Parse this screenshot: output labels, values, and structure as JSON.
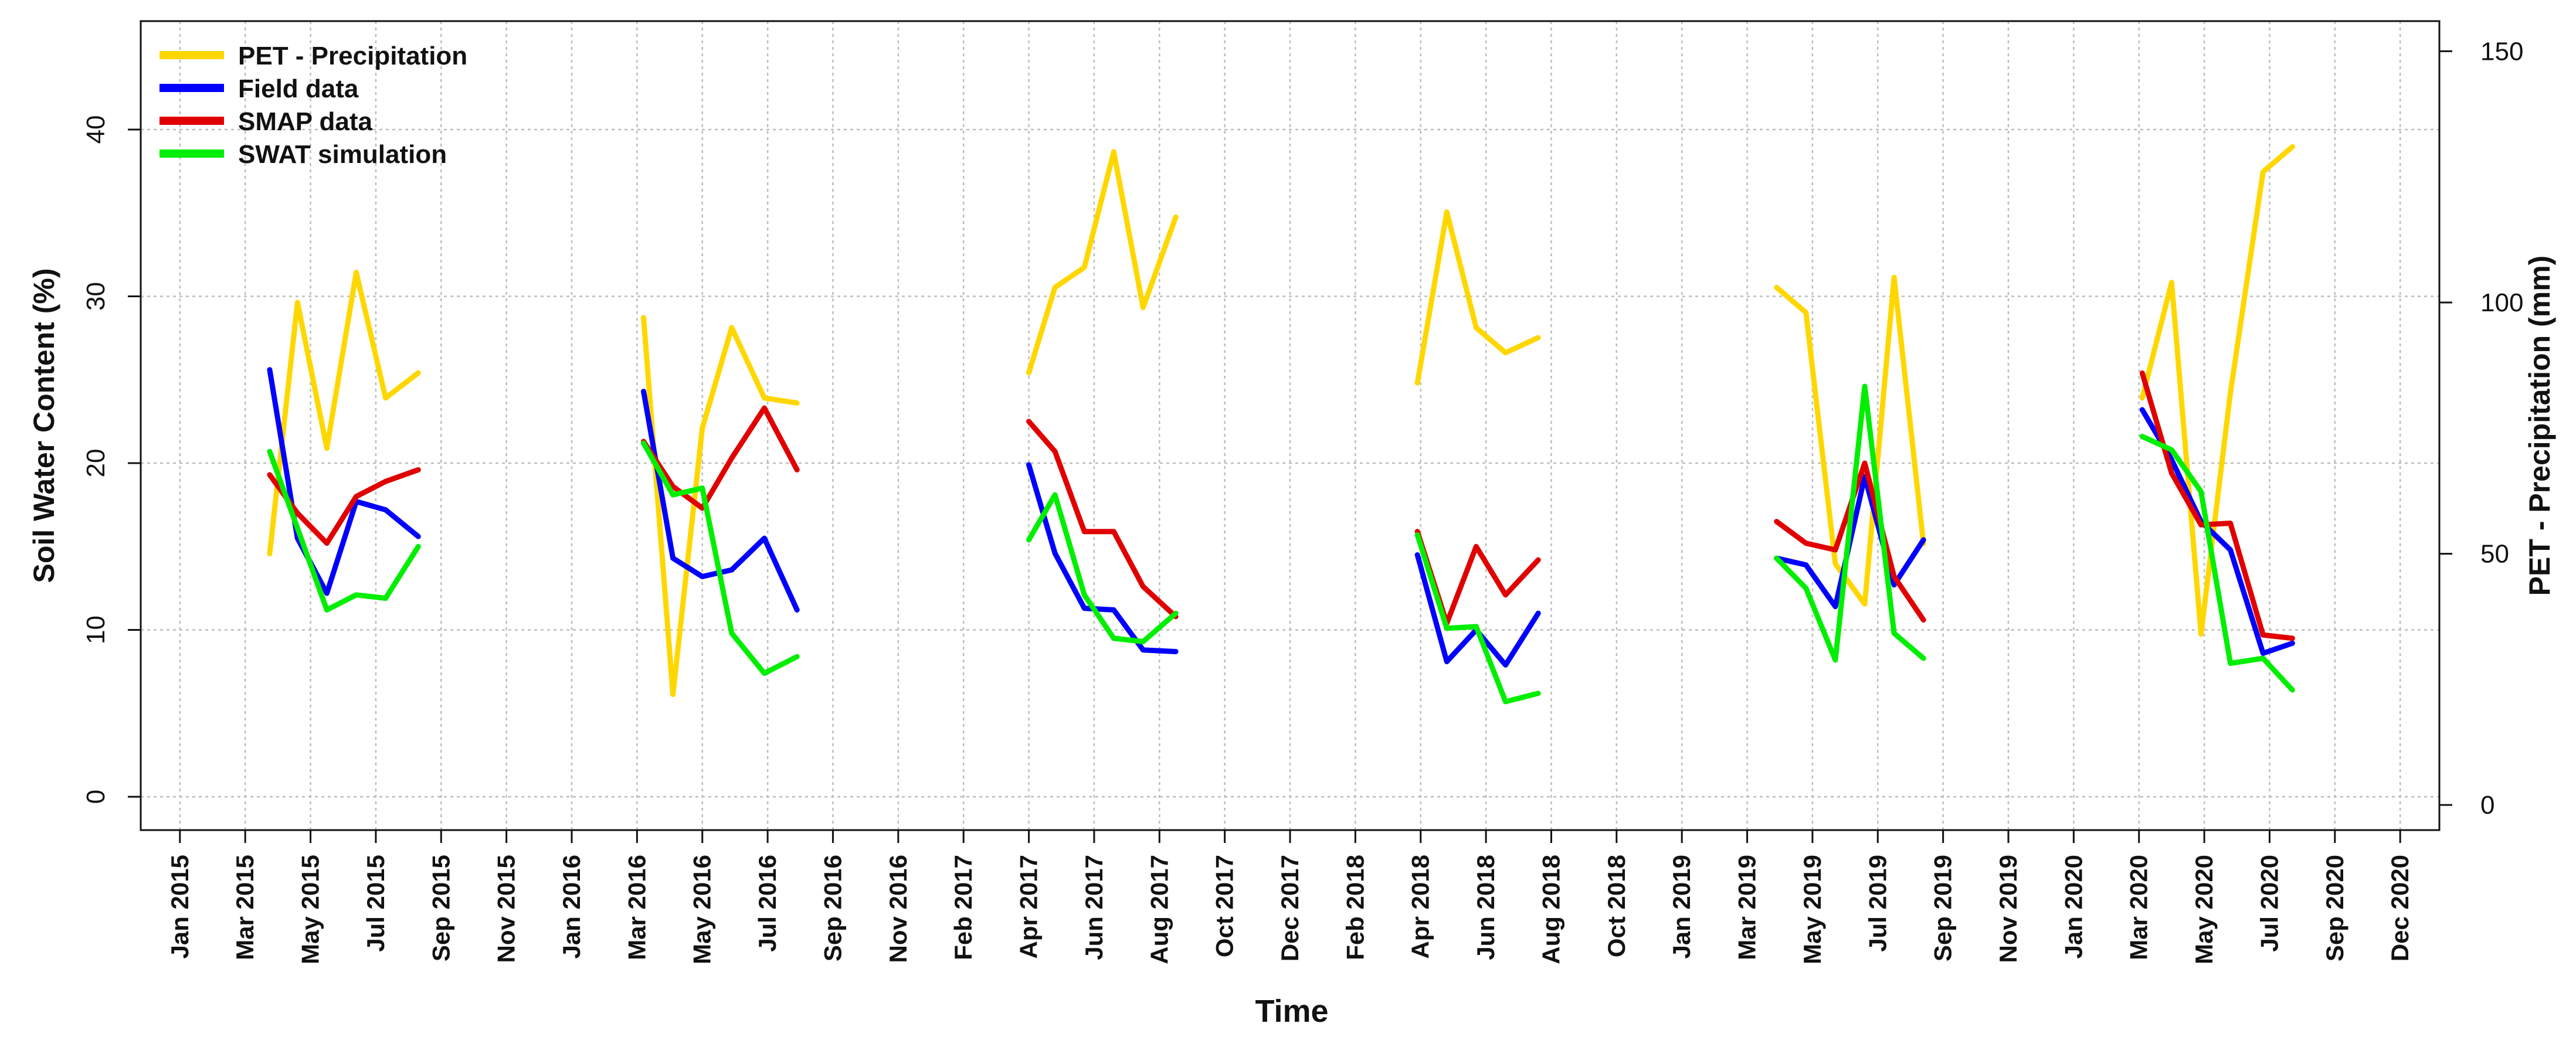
{
  "chart_data": {
    "type": "line",
    "title": "",
    "xlabel": "Time",
    "ylabel_left": "Soil Water Content (%)",
    "ylabel_right": "PET - Precipitation (mm)",
    "yleft_lim": [
      -2,
      46.5
    ],
    "yright_lim": [
      -5,
      156
    ],
    "yleft_ticks": [
      0,
      10,
      20,
      30,
      40
    ],
    "yright_ticks": [
      0,
      50,
      100,
      150
    ],
    "legend_position": "top-left",
    "grid": true,
    "x_ticks": [
      {
        "label": "Jan 2015",
        "t": 0
      },
      {
        "label": "Mar 2015",
        "t": 2
      },
      {
        "label": "May 2015",
        "t": 4
      },
      {
        "label": "Jul 2015",
        "t": 6
      },
      {
        "label": "Sep 2015",
        "t": 8
      },
      {
        "label": "Nov 2015",
        "t": 10
      },
      {
        "label": "Jan 2016",
        "t": 12
      },
      {
        "label": "Mar 2016",
        "t": 14
      },
      {
        "label": "May 2016",
        "t": 16
      },
      {
        "label": "Jul 2016",
        "t": 18
      },
      {
        "label": "Sep 2016",
        "t": 20
      },
      {
        "label": "Nov 2016",
        "t": 22
      },
      {
        "label": "Feb 2017",
        "t": 24
      },
      {
        "label": "Apr 2017",
        "t": 26
      },
      {
        "label": "Jun 2017",
        "t": 28
      },
      {
        "label": "Aug 2017",
        "t": 30
      },
      {
        "label": "Oct 2017",
        "t": 32
      },
      {
        "label": "Dec 2017",
        "t": 34
      },
      {
        "label": "Feb 2018",
        "t": 36
      },
      {
        "label": "Apr 2018",
        "t": 38
      },
      {
        "label": "Jun 2018",
        "t": 40
      },
      {
        "label": "Aug 2018",
        "t": 42
      },
      {
        "label": "Oct 2018",
        "t": 44
      },
      {
        "label": "Jan 2019",
        "t": 46
      },
      {
        "label": "Mar 2019",
        "t": 48
      },
      {
        "label": "May 2019",
        "t": 50
      },
      {
        "label": "Jul 2019",
        "t": 52
      },
      {
        "label": "Sep 2019",
        "t": 54
      },
      {
        "label": "Nov 2019",
        "t": 56
      },
      {
        "label": "Jan 2020",
        "t": 58
      },
      {
        "label": "Mar 2020",
        "t": 60
      },
      {
        "label": "May 2020",
        "t": 62
      },
      {
        "label": "Jul 2020",
        "t": 64
      },
      {
        "label": "Sep 2020",
        "t": 66
      },
      {
        "label": "Dec 2020",
        "t": 68
      }
    ],
    "x_range": [
      -1.2,
      69.2
    ],
    "series": [
      {
        "name": "PET - Precipitation",
        "axis": "right",
        "color": "#FFD700",
        "segments": [
          [
            [
              2.75,
              50
            ],
            [
              3.6,
              100
            ],
            [
              4.5,
              71
            ],
            [
              5.4,
              106
            ],
            [
              6.3,
              81
            ],
            [
              7.3,
              86
            ]
          ],
          [
            [
              14.2,
              97
            ],
            [
              15.1,
              22
            ],
            [
              16.0,
              75
            ],
            [
              16.9,
              95
            ],
            [
              17.9,
              81
            ],
            [
              18.9,
              80
            ]
          ],
          [
            [
              26.0,
              86
            ],
            [
              26.8,
              103
            ],
            [
              27.7,
              107
            ],
            [
              28.6,
              130
            ],
            [
              29.5,
              99
            ],
            [
              30.5,
              117
            ]
          ],
          [
            [
              37.9,
              84
            ],
            [
              38.8,
              118
            ],
            [
              39.7,
              95
            ],
            [
              40.6,
              90
            ],
            [
              41.6,
              93
            ]
          ],
          [
            [
              48.9,
              103
            ],
            [
              49.8,
              98
            ],
            [
              50.7,
              48
            ],
            [
              51.6,
              40
            ],
            [
              52.5,
              105
            ],
            [
              53.4,
              52
            ]
          ],
          [
            [
              60.1,
              81
            ],
            [
              61.0,
              104
            ],
            [
              61.9,
              34
            ],
            [
              62.8,
              82
            ],
            [
              63.8,
              126
            ],
            [
              64.7,
              131
            ]
          ]
        ]
      },
      {
        "name": "Field data",
        "axis": "left",
        "color": "#0000FF",
        "segments": [
          [
            [
              2.75,
              25.6
            ],
            [
              3.6,
              15.5
            ],
            [
              4.5,
              12.2
            ],
            [
              5.4,
              17.7
            ],
            [
              6.3,
              17.2
            ],
            [
              7.3,
              15.6
            ]
          ],
          [
            [
              14.2,
              24.3
            ],
            [
              15.1,
              14.3
            ],
            [
              16.0,
              13.2
            ],
            [
              16.9,
              13.6
            ],
            [
              17.9,
              15.5
            ],
            [
              18.9,
              11.2
            ]
          ],
          [
            [
              26.0,
              19.9
            ],
            [
              26.8,
              14.6
            ],
            [
              27.7,
              11.3
            ],
            [
              28.6,
              11.2
            ],
            [
              29.5,
              8.8
            ],
            [
              30.5,
              8.7
            ]
          ],
          [
            [
              37.9,
              14.5
            ],
            [
              38.8,
              8.1
            ],
            [
              39.7,
              10.0
            ],
            [
              40.6,
              7.9
            ],
            [
              41.6,
              11.0
            ]
          ],
          [
            [
              48.9,
              14.3
            ],
            [
              49.8,
              13.9
            ],
            [
              50.7,
              11.4
            ],
            [
              51.6,
              19.2
            ],
            [
              52.5,
              12.7
            ],
            [
              53.4,
              15.4
            ]
          ],
          [
            [
              60.1,
              23.2
            ],
            [
              61.0,
              20.2
            ],
            [
              61.9,
              16.5
            ],
            [
              62.8,
              14.8
            ],
            [
              63.8,
              8.6
            ],
            [
              64.7,
              9.2
            ]
          ]
        ]
      },
      {
        "name": "SMAP data",
        "axis": "left",
        "color": "#E00000",
        "segments": [
          [
            [
              2.75,
              19.3
            ],
            [
              3.6,
              17.0
            ],
            [
              4.5,
              15.2
            ],
            [
              5.4,
              18.0
            ],
            [
              6.3,
              18.9
            ],
            [
              7.3,
              19.6
            ]
          ],
          [
            [
              14.2,
              21.3
            ],
            [
              15.1,
              18.6
            ],
            [
              16.0,
              17.3
            ],
            [
              16.9,
              20.3
            ],
            [
              17.9,
              23.3
            ],
            [
              18.9,
              19.6
            ]
          ],
          [
            [
              26.0,
              22.5
            ],
            [
              26.8,
              20.7
            ],
            [
              27.7,
              15.9
            ],
            [
              28.6,
              15.9
            ],
            [
              29.5,
              12.6
            ],
            [
              30.5,
              10.8
            ]
          ],
          [
            [
              37.9,
              15.9
            ],
            [
              38.8,
              10.4
            ],
            [
              39.7,
              15.0
            ],
            [
              40.6,
              12.1
            ],
            [
              41.6,
              14.2
            ]
          ],
          [
            [
              48.9,
              16.5
            ],
            [
              49.8,
              15.2
            ],
            [
              50.7,
              14.8
            ],
            [
              51.6,
              20.0
            ],
            [
              52.5,
              13.2
            ],
            [
              53.4,
              10.6
            ]
          ],
          [
            [
              60.1,
              25.4
            ],
            [
              61.0,
              19.4
            ],
            [
              61.9,
              16.3
            ],
            [
              62.8,
              16.4
            ],
            [
              63.8,
              9.7
            ],
            [
              64.7,
              9.5
            ]
          ]
        ]
      },
      {
        "name": "SWAT simulation",
        "axis": "left",
        "color": "#00EE00",
        "segments": [
          [
            [
              2.75,
              20.7
            ],
            [
              3.6,
              16.1
            ],
            [
              4.5,
              11.2
            ],
            [
              5.4,
              12.1
            ],
            [
              6.3,
              11.9
            ],
            [
              7.3,
              15.0
            ]
          ],
          [
            [
              14.2,
              21.2
            ],
            [
              15.1,
              18.1
            ],
            [
              16.0,
              18.5
            ],
            [
              16.9,
              9.8
            ],
            [
              17.9,
              7.4
            ],
            [
              18.9,
              8.4
            ]
          ],
          [
            [
              26.0,
              15.4
            ],
            [
              26.8,
              18.1
            ],
            [
              27.7,
              12.1
            ],
            [
              28.6,
              9.5
            ],
            [
              29.5,
              9.3
            ],
            [
              30.5,
              11.0
            ]
          ],
          [
            [
              37.9,
              15.7
            ],
            [
              38.8,
              10.1
            ],
            [
              39.7,
              10.2
            ],
            [
              40.6,
              5.7
            ],
            [
              41.6,
              6.2
            ]
          ],
          [
            [
              48.9,
              14.3
            ],
            [
              49.8,
              12.5
            ],
            [
              50.7,
              8.2
            ],
            [
              51.6,
              24.6
            ],
            [
              52.5,
              9.8
            ],
            [
              53.4,
              8.3
            ]
          ],
          [
            [
              60.1,
              21.6
            ],
            [
              61.0,
              20.8
            ],
            [
              61.9,
              18.3
            ],
            [
              62.8,
              8.0
            ],
            [
              63.8,
              8.3
            ],
            [
              64.7,
              6.4
            ]
          ]
        ]
      }
    ]
  }
}
